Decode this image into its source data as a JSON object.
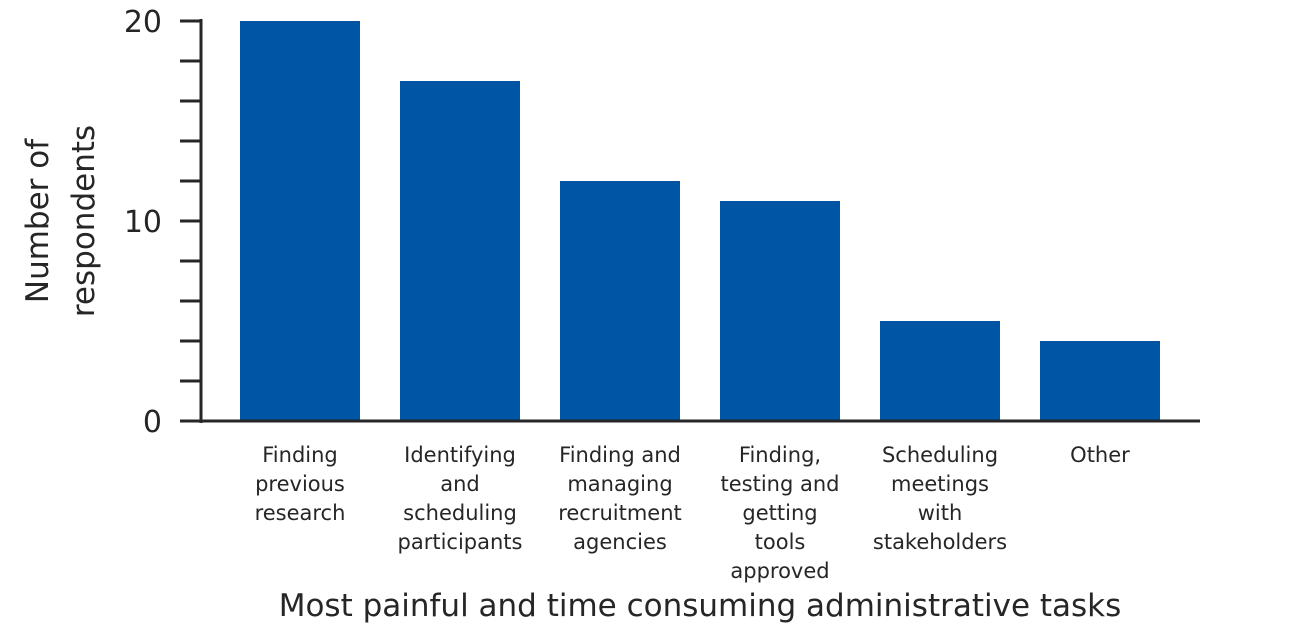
{
  "chart_data": {
    "type": "bar",
    "title": "",
    "xlabel": "Most painful and time consuming administrative tasks",
    "ylabel": [
      "Number of",
      "respondents"
    ],
    "ylim": [
      0,
      20
    ],
    "yticks_labeled": [
      "0",
      "10",
      "20"
    ],
    "yticks_minor_step": 2,
    "grid": false,
    "categories": [
      [
        "Finding",
        "previous",
        "research"
      ],
      [
        "Identifying",
        "and",
        "scheduling",
        "participants"
      ],
      [
        "Finding and",
        "managing",
        "recruitment",
        "agencies"
      ],
      [
        "Finding,",
        "testing and",
        "getting",
        "tools",
        "approved"
      ],
      [
        "Scheduling",
        "meetings",
        "with",
        "stakeholders"
      ],
      [
        "Other"
      ]
    ],
    "values": [
      20,
      17,
      12,
      11,
      5,
      4
    ],
    "colors": {
      "bar": "#0055A5",
      "axis": "#262626"
    }
  }
}
